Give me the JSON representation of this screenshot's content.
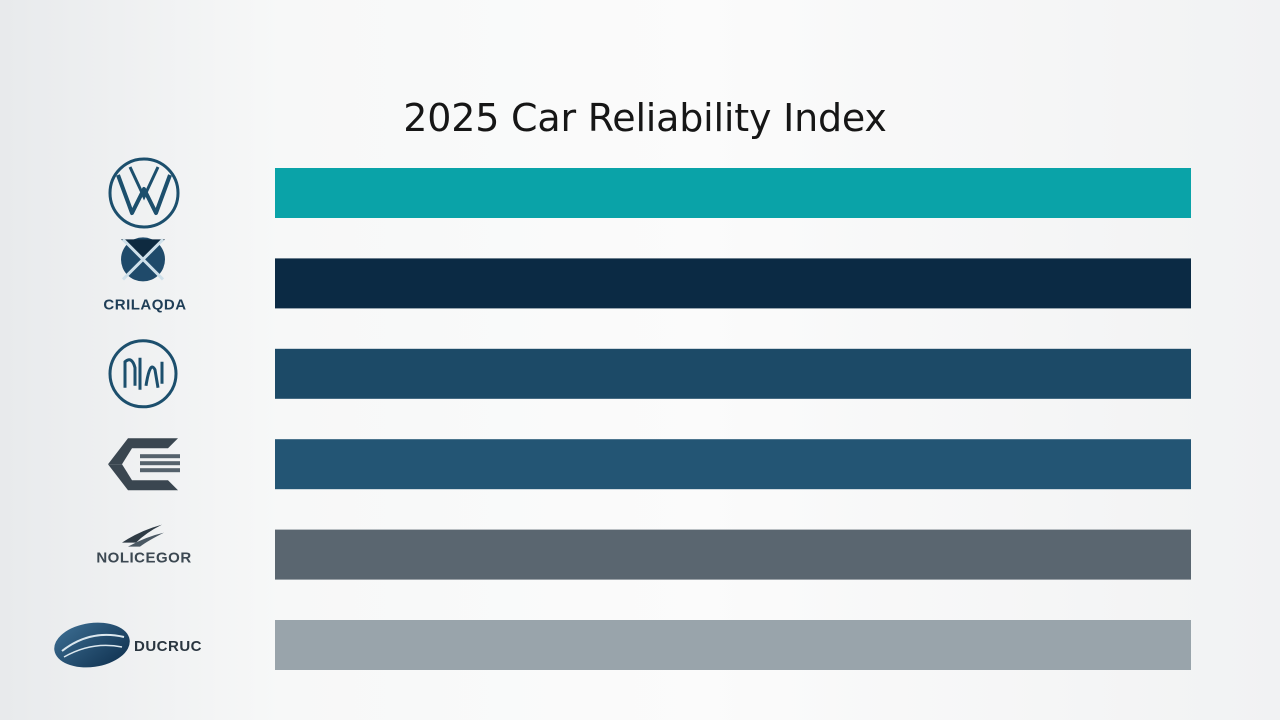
{
  "chart_data": {
    "type": "bar",
    "orientation": "horizontal",
    "title": "2025 Car Reliability Index",
    "xlabel": "",
    "ylabel": "",
    "grid": false,
    "legend": "none",
    "xlim": [
      0,
      100
    ],
    "categories": [
      {
        "label": "",
        "logo": "vw-style-circle-logo"
      },
      {
        "label": "CRILAQDA",
        "logo": "diamond-cross-logo"
      },
      {
        "label": "",
        "logo": "circle-emblem-logo"
      },
      {
        "label": "",
        "logo": "chevron-stripes-logo"
      },
      {
        "label": "NOLICEGOR",
        "logo": "swoosh-logo"
      },
      {
        "label": "DUCRUC",
        "logo": "oval-wing-logo"
      }
    ],
    "values": [
      100,
      100,
      100,
      100,
      100,
      100
    ],
    "colors": [
      "#0aa3a8",
      "#0b2a44",
      "#1c4a67",
      "#235574",
      "#5a6670",
      "#99a4ab"
    ]
  }
}
